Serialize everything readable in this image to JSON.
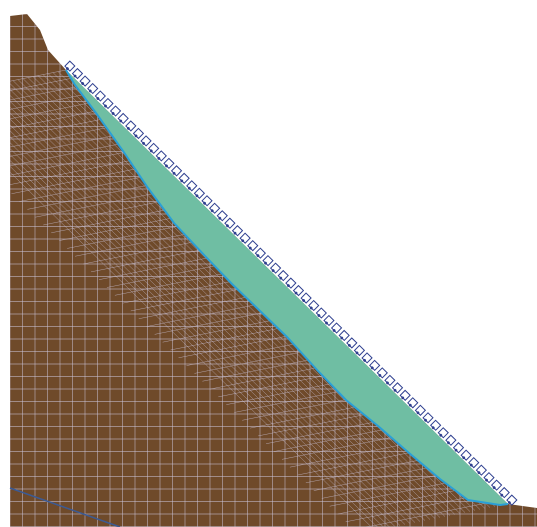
{
  "view": {
    "background": "#ffffff"
  },
  "model": {
    "soil_color": "#6f4a2a",
    "mesh_color": "#c9c0d4",
    "slip_mass_color": "#6fbea3",
    "slip_boundary_color": "#2a9fd6",
    "support_outline_color": "#2e3f8f",
    "support_fill_color": "#ffffff",
    "interface_line_color": "#3b5a94"
  }
}
